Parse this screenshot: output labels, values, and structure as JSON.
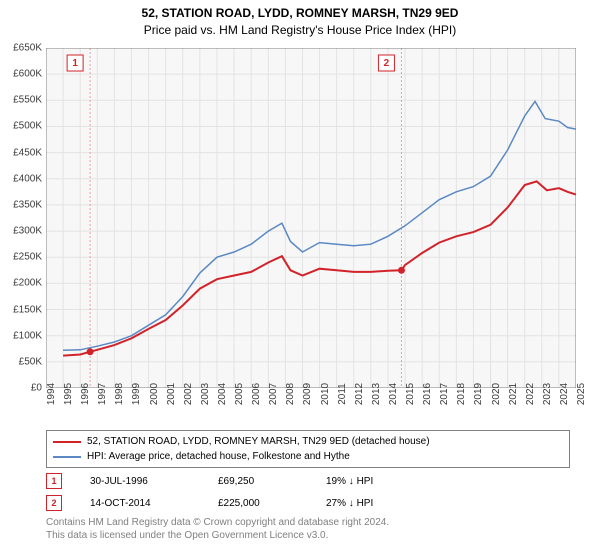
{
  "title": "52, STATION ROAD, LYDD, ROMNEY MARSH, TN29 9ED",
  "subtitle": "Price paid vs. HM Land Registry's House Price Index (HPI)",
  "chart": {
    "type": "line",
    "background_color": "#f7f7f7",
    "grid_color": "#e3e3e3",
    "ylim": [
      0,
      650000
    ],
    "ytick_step": 50000,
    "ytick_labels": [
      "£0",
      "£50K",
      "£100K",
      "£150K",
      "£200K",
      "£250K",
      "£300K",
      "£350K",
      "£400K",
      "£450K",
      "£500K",
      "£550K",
      "£600K",
      "£650K"
    ],
    "xlim": [
      1994,
      2025
    ],
    "xticks": [
      1994,
      1995,
      1996,
      1997,
      1998,
      1999,
      2000,
      2001,
      2002,
      2003,
      2004,
      2005,
      2006,
      2007,
      2008,
      2009,
      2010,
      2011,
      2012,
      2013,
      2014,
      2015,
      2016,
      2017,
      2018,
      2019,
      2020,
      2021,
      2022,
      2023,
      2024,
      2025
    ],
    "series": [
      {
        "name": "price_paid",
        "label": "52, STATION ROAD, LYDD, ROMNEY MARSH, TN29 9ED (detached house)",
        "color": "#d2232a",
        "line_width": 2,
        "data": [
          [
            1995.0,
            62000
          ],
          [
            1996.0,
            64000
          ],
          [
            1996.58,
            69250
          ],
          [
            1997.0,
            73000
          ],
          [
            1998.0,
            82000
          ],
          [
            1999.0,
            95000
          ],
          [
            2000.0,
            113000
          ],
          [
            2001.0,
            130000
          ],
          [
            2002.0,
            158000
          ],
          [
            2003.0,
            190000
          ],
          [
            2004.0,
            208000
          ],
          [
            2005.0,
            215000
          ],
          [
            2006.0,
            222000
          ],
          [
            2007.0,
            240000
          ],
          [
            2007.8,
            252000
          ],
          [
            2008.3,
            225000
          ],
          [
            2009.0,
            215000
          ],
          [
            2010.0,
            228000
          ],
          [
            2011.0,
            225000
          ],
          [
            2012.0,
            222000
          ],
          [
            2013.0,
            222000
          ],
          [
            2014.0,
            224000
          ],
          [
            2014.79,
            225000
          ],
          [
            2015.0,
            235000
          ],
          [
            2016.0,
            258000
          ],
          [
            2017.0,
            278000
          ],
          [
            2018.0,
            290000
          ],
          [
            2019.0,
            298000
          ],
          [
            2020.0,
            312000
          ],
          [
            2021.0,
            345000
          ],
          [
            2022.0,
            388000
          ],
          [
            2022.7,
            395000
          ],
          [
            2023.3,
            378000
          ],
          [
            2024.0,
            382000
          ],
          [
            2024.5,
            375000
          ],
          [
            2025.0,
            370000
          ]
        ]
      },
      {
        "name": "hpi",
        "label": "HPI: Average price, detached house, Folkestone and Hythe",
        "color": "#5b89c4",
        "line_width": 1.5,
        "data": [
          [
            1995.0,
            72000
          ],
          [
            1996.0,
            73000
          ],
          [
            1997.0,
            80000
          ],
          [
            1998.0,
            88000
          ],
          [
            1999.0,
            100000
          ],
          [
            2000.0,
            120000
          ],
          [
            2001.0,
            140000
          ],
          [
            2002.0,
            175000
          ],
          [
            2003.0,
            220000
          ],
          [
            2004.0,
            250000
          ],
          [
            2005.0,
            260000
          ],
          [
            2006.0,
            275000
          ],
          [
            2007.0,
            300000
          ],
          [
            2007.8,
            315000
          ],
          [
            2008.3,
            280000
          ],
          [
            2009.0,
            260000
          ],
          [
            2010.0,
            278000
          ],
          [
            2011.0,
            275000
          ],
          [
            2012.0,
            272000
          ],
          [
            2013.0,
            275000
          ],
          [
            2014.0,
            290000
          ],
          [
            2015.0,
            310000
          ],
          [
            2016.0,
            335000
          ],
          [
            2017.0,
            360000
          ],
          [
            2018.0,
            375000
          ],
          [
            2019.0,
            385000
          ],
          [
            2020.0,
            405000
          ],
          [
            2021.0,
            455000
          ],
          [
            2022.0,
            520000
          ],
          [
            2022.6,
            548000
          ],
          [
            2023.2,
            515000
          ],
          [
            2024.0,
            510000
          ],
          [
            2024.5,
            498000
          ],
          [
            2025.0,
            495000
          ]
        ]
      }
    ],
    "sale_markers": [
      {
        "num": "1",
        "x": 1996.58,
        "y": 69250,
        "badge_offset_x": -15,
        "badge_y_top": 15,
        "color": "#d2232a",
        "vline_color": "#e6a0a3"
      },
      {
        "num": "2",
        "x": 2014.79,
        "y": 225000,
        "badge_offset_x": -15,
        "badge_y_top": 15,
        "color": "#d2232a",
        "vline_color": "#e6a0a3"
      }
    ]
  },
  "legend": [
    {
      "color": "#d2232a",
      "label": "52, STATION ROAD, LYDD, ROMNEY MARSH, TN29 9ED (detached house)"
    },
    {
      "color": "#5b89c4",
      "label": "HPI: Average price, detached house, Folkestone and Hythe"
    }
  ],
  "sales": [
    {
      "num": "1",
      "color": "#d2232a",
      "date": "30-JUL-1996",
      "price": "£69,250",
      "delta": "19% ↓ HPI"
    },
    {
      "num": "2",
      "color": "#d2232a",
      "date": "14-OCT-2014",
      "price": "£225,000",
      "delta": "27% ↓ HPI"
    }
  ],
  "footer_line1": "Contains HM Land Registry data © Crown copyright and database right 2024.",
  "footer_line2": "This data is licensed under the Open Government Licence v3.0."
}
